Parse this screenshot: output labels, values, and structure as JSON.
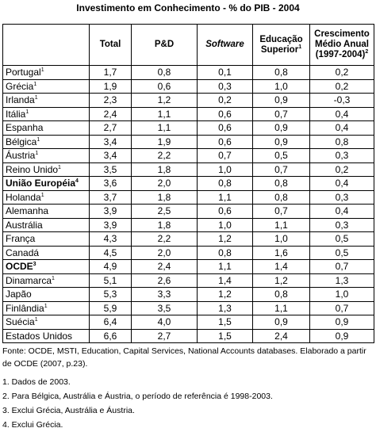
{
  "title": "Investimento em Conhecimento - % do PIB - 2004",
  "table": {
    "headers": [
      {
        "text": "Total"
      },
      {
        "text": "P&D"
      },
      {
        "text": "Software",
        "italic": true
      },
      {
        "text": "Educação Superior",
        "note": "1"
      },
      {
        "text": "Crescimento Médio Anual (1997-2004)",
        "note": "2"
      }
    ],
    "rows": [
      {
        "country": "Portugal",
        "note": "1",
        "cells": [
          "1,7",
          "0,8",
          "0,1",
          "0,8",
          "0,2"
        ]
      },
      {
        "country": "Grécia",
        "note": "1",
        "cells": [
          "1,9",
          "0,6",
          "0,3",
          "1,0",
          "0,2"
        ]
      },
      {
        "country": "Irlanda",
        "note": "1",
        "cells": [
          "2,3",
          "1,2",
          "0,2",
          "0,9",
          "-0,3"
        ]
      },
      {
        "country": "Itália",
        "note": "1",
        "cells": [
          "2,4",
          "1,1",
          "0,6",
          "0,7",
          "0,4"
        ]
      },
      {
        "country": "Espanha",
        "cells": [
          "2,7",
          "1,1",
          "0,6",
          "0,9",
          "0,4"
        ]
      },
      {
        "country": "Bélgica",
        "note": "1",
        "cells": [
          "3,4",
          "1,9",
          "0,6",
          "0,9",
          "0,8"
        ]
      },
      {
        "country": "Áustria",
        "note": "1",
        "cells": [
          "3,4",
          "2,2",
          "0,7",
          "0,5",
          "0,3"
        ]
      },
      {
        "country": "Reino Unido",
        "note": "1",
        "cells": [
          "3,5",
          "1,8",
          "1,0",
          "0,7",
          "0,2"
        ]
      },
      {
        "country": "União Européia",
        "note": "4",
        "bold": true,
        "cells": [
          "3,6",
          "2,0",
          "0,8",
          "0,8",
          "0,4"
        ]
      },
      {
        "country": "Holanda",
        "note": "1",
        "cells": [
          "3,7",
          "1,8",
          "1,1",
          "0,8",
          "0,3"
        ]
      },
      {
        "country": "Alemanha",
        "cells": [
          "3,9",
          "2,5",
          "0,6",
          "0,7",
          "0,4"
        ]
      },
      {
        "country": "Austrália",
        "cells": [
          "3,9",
          "1,8",
          "1,0",
          "1,1",
          "0,3"
        ]
      },
      {
        "country": "França",
        "cells": [
          "4,3",
          "2,2",
          "1,2",
          "1,0",
          "0,5"
        ]
      },
      {
        "country": "Canadá",
        "cells": [
          "4,5",
          "2,0",
          "0,8",
          "1,6",
          "0,5"
        ]
      },
      {
        "country": "OCDE",
        "note": "3",
        "bold": true,
        "cells": [
          "4,9",
          "2,4",
          "1,1",
          "1,4",
          "0,7"
        ]
      },
      {
        "country": "Dinamarca",
        "note": "1",
        "cells": [
          "5,1",
          "2,6",
          "1,4",
          "1,2",
          "1,3"
        ]
      },
      {
        "country": "Japão",
        "cells": [
          "5,3",
          "3,3",
          "1,2",
          "0,8",
          "1,0"
        ]
      },
      {
        "country": "Finlândia",
        "note": "1",
        "cells": [
          "5,9",
          "3,5",
          "1,3",
          "1,1",
          "0,7"
        ]
      },
      {
        "country": "Suécia",
        "note": "1",
        "cells": [
          "6,4",
          "4,0",
          "1,5",
          "0,9",
          "0,9"
        ]
      },
      {
        "country": "Estados Unidos",
        "cells": [
          "6,6",
          "2,7",
          "1,5",
          "2,4",
          "0,9"
        ]
      }
    ]
  },
  "source": "Fonte: OCDE, MSTI, Education, Capital Services, National Accounts databases. Elaborado a partir de OCDE (2007, p.23).",
  "notes": [
    "1. Dados de 2003.",
    "2. Para Bélgica, Austrália e Áustria, o período de referência é 1998-2003.",
    "3. Exclui Grécia, Austrália e Áustria.",
    "4. Exclui Grécia."
  ]
}
